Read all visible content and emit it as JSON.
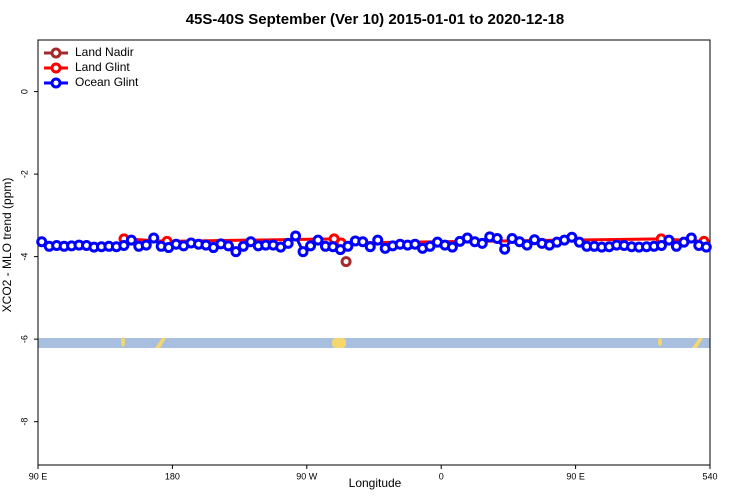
{
  "chart_data": {
    "type": "line",
    "title": "45S-40S September (Ver 10)   2015-01-01 to 2020-12-18",
    "xlabel": "Longitude",
    "ylabel": "XCO2 - MLO trend (ppm)",
    "xlim": [
      90,
      540
    ],
    "ylim": [
      -9.05,
      1.25
    ],
    "xticks": [
      {
        "value": 90,
        "label": "90 E"
      },
      180,
      {
        "value": 270,
        "label": "90 W"
      },
      {
        "value": 360,
        "label": "0"
      },
      {
        "value": 450,
        "label": "90 E"
      },
      540
    ],
    "yticks": [
      -8,
      -6,
      -4,
      -2,
      0
    ],
    "legend": "top-left",
    "series": [
      {
        "name": "Land Nadir",
        "color": "#a52a2a",
        "x": [
          296.3
        ],
        "values": [
          -4.12
        ]
      },
      {
        "name": "Land Glint",
        "color": "#ff0000",
        "x": [
          147.6,
          176.4,
          288.3,
          293,
          507.3,
          536
        ],
        "values": [
          -3.57,
          -3.63,
          -3.57,
          -3.67,
          -3.57,
          -3.63
        ]
      },
      {
        "name": "Ocean Glint",
        "color": "#0000ff",
        "x": [
          92.5,
          97.5,
          102.5,
          107.5,
          112.5,
          117.5,
          122.5,
          127.5,
          132.5,
          137.5,
          142.5,
          147.5,
          152.5,
          157.5,
          162.5,
          167.5,
          172.5,
          177.5,
          182.5,
          187.5,
          192.5,
          197.5,
          202.5,
          207.5,
          212.5,
          217.5,
          222.5,
          227.5,
          232.5,
          237.5,
          242.5,
          247.5,
          252.5,
          257.5,
          262.5,
          267.5,
          272.5,
          277.5,
          282.5,
          287.5,
          292.5,
          297.5,
          302.5,
          307.5,
          312.5,
          317.5,
          322.5,
          327.5,
          332.5,
          337.5,
          342.5,
          347.5,
          352.5,
          357.5,
          362.5,
          367.5,
          372.5,
          377.5,
          382.5,
          387.5,
          392.5,
          397.5,
          402.5,
          407.5,
          412.5,
          417.5,
          422.5,
          427.5,
          432.5,
          437.5,
          442.5,
          447.5,
          452.5,
          457.5,
          462.5,
          467.5,
          472.5,
          477.5,
          482.5,
          487.5,
          492.5,
          497.5,
          502.5,
          507.5,
          512.5,
          517.5,
          522.5,
          527.5,
          532.5,
          537.5
        ],
        "values": [
          -3.64,
          -3.75,
          -3.73,
          -3.75,
          -3.74,
          -3.72,
          -3.73,
          -3.77,
          -3.76,
          -3.75,
          -3.76,
          -3.73,
          -3.6,
          -3.75,
          -3.72,
          -3.55,
          -3.75,
          -3.78,
          -3.7,
          -3.74,
          -3.67,
          -3.7,
          -3.72,
          -3.78,
          -3.69,
          -3.74,
          -3.88,
          -3.75,
          -3.64,
          -3.74,
          -3.72,
          -3.72,
          -3.77,
          -3.68,
          -3.5,
          -3.88,
          -3.74,
          -3.6,
          -3.75,
          -3.76,
          -3.83,
          -3.75,
          -3.62,
          -3.64,
          -3.76,
          -3.6,
          -3.8,
          -3.74,
          -3.7,
          -3.72,
          -3.7,
          -3.8,
          -3.75,
          -3.65,
          -3.72,
          -3.77,
          -3.63,
          -3.55,
          -3.64,
          -3.68,
          -3.52,
          -3.56,
          -3.82,
          -3.56,
          -3.64,
          -3.72,
          -3.59,
          -3.68,
          -3.72,
          -3.65,
          -3.6,
          -3.53,
          -3.65,
          -3.75,
          -3.75,
          -3.77,
          -3.76,
          -3.72,
          -3.73,
          -3.76,
          -3.77,
          -3.76,
          -3.75,
          -3.73,
          -3.6,
          -3.75,
          -3.65,
          -3.55,
          -3.73,
          -3.77
        ]
      }
    ]
  }
}
